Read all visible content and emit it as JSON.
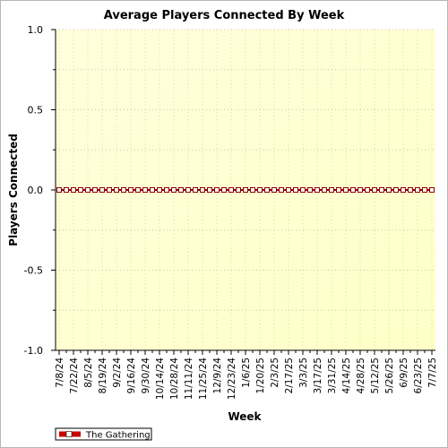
{
  "chart_data": {
    "type": "line",
    "title": "Average Players Connected By Week",
    "xlabel": "Week",
    "ylabel": "Players Connected",
    "ylim": [
      -1.0,
      1.0
    ],
    "y_ticks": [
      "1.0",
      "0.5",
      "0.0",
      "-0.5",
      "-1.0"
    ],
    "y_tick_values": [
      1.0,
      0.5,
      0.0,
      -0.5,
      -1.0
    ],
    "x_tick_labels": [
      "7/8/24",
      "7/22/24",
      "8/5/24",
      "8/19/24",
      "9/2/24",
      "9/16/24",
      "9/30/24",
      "10/14/24",
      "10/28/24",
      "11/11/24",
      "11/25/24",
      "12/9/24",
      "12/23/24",
      "1/6/25",
      "1/20/25",
      "2/3/25",
      "2/17/25",
      "3/3/25",
      "3/17/25",
      "3/31/25",
      "4/14/25",
      "4/28/25",
      "5/12/25",
      "5/26/25",
      "6/9/25",
      "6/23/25",
      "7/7/25"
    ],
    "x_count": 53,
    "series": [
      {
        "name": "The Gathering",
        "color": "#8b0000",
        "values": [
          0,
          0,
          0,
          0,
          0,
          0,
          0,
          0,
          0,
          0,
          0,
          0,
          0,
          0,
          0,
          0,
          0,
          0,
          0,
          0,
          0,
          0,
          0,
          0,
          0,
          0,
          0,
          0,
          0,
          0,
          0,
          0,
          0,
          0,
          0,
          0,
          0,
          0,
          0,
          0,
          0,
          0,
          0,
          0,
          0,
          0,
          0,
          0,
          0,
          0,
          0,
          0,
          0
        ]
      }
    ],
    "grid": true,
    "legend_position": "bottom-left",
    "plot_background": [
      "#ffffcc",
      "#ffffe8"
    ]
  }
}
